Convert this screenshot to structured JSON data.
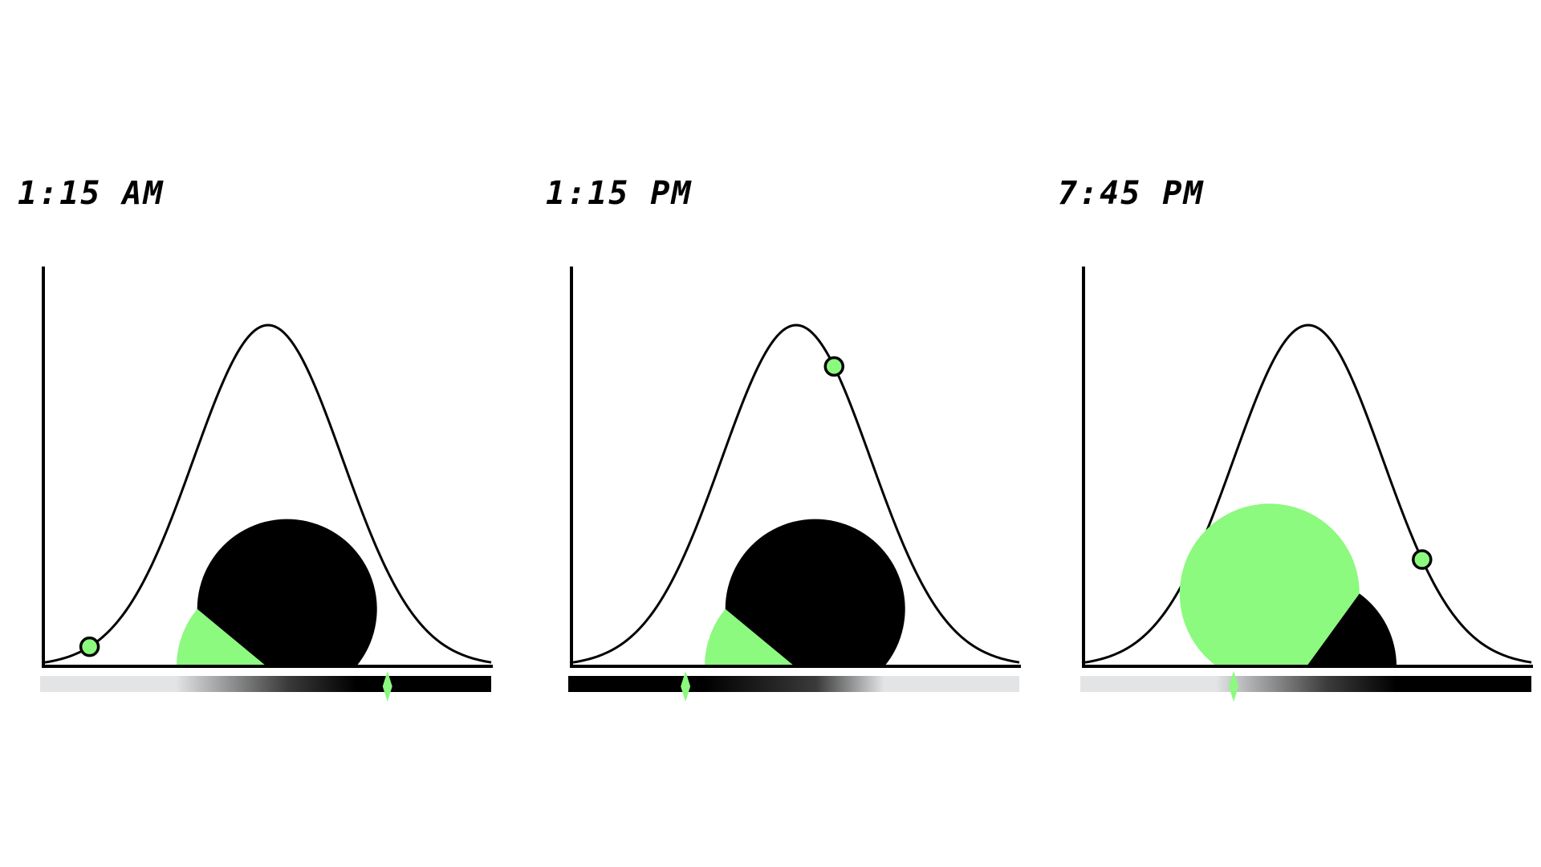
{
  "colors": {
    "accent": "#8cf97f",
    "ink": "#000000",
    "light_band": "#e2e4e6",
    "background": "#ffffff"
  },
  "panels": [
    {
      "time": "1:15 AM",
      "curve_position": 0.1,
      "gauge_green_fraction": 0.22,
      "gradient_direction": "light-to-dark",
      "gradient_marker": 0.77
    },
    {
      "time": "1:15 PM",
      "curve_position": 0.585,
      "gauge_green_fraction": 0.22,
      "gradient_direction": "dark-to-light",
      "gradient_marker": 0.26
    },
    {
      "time": "7:45 PM",
      "curve_position": 0.755,
      "gauge_green_fraction": 0.7,
      "gradient_direction": "light-to-dark",
      "gradient_marker": 0.34
    }
  ]
}
